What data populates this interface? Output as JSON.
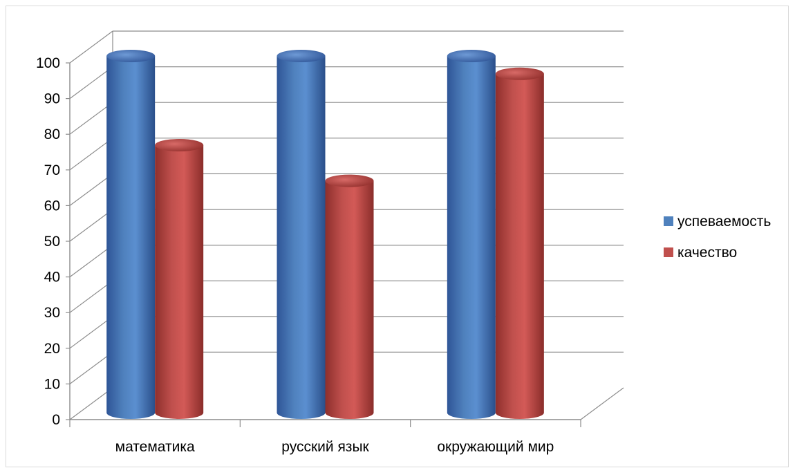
{
  "chart_data": {
    "type": "bar",
    "categories": [
      "математика",
      "русский язык",
      "окружающий мир"
    ],
    "series": [
      {
        "name": "успеваемость",
        "values": [
          100,
          100,
          100
        ],
        "color": "#4f81bd"
      },
      {
        "name": "качество",
        "values": [
          75,
          65,
          95
        ],
        "color": "#c0504d"
      }
    ],
    "ylim": [
      0,
      100
    ],
    "yticks": [
      0,
      10,
      20,
      30,
      40,
      50,
      60,
      70,
      80,
      90,
      100
    ],
    "grid": true,
    "legend_position": "right",
    "style": "3d-cylinder"
  }
}
